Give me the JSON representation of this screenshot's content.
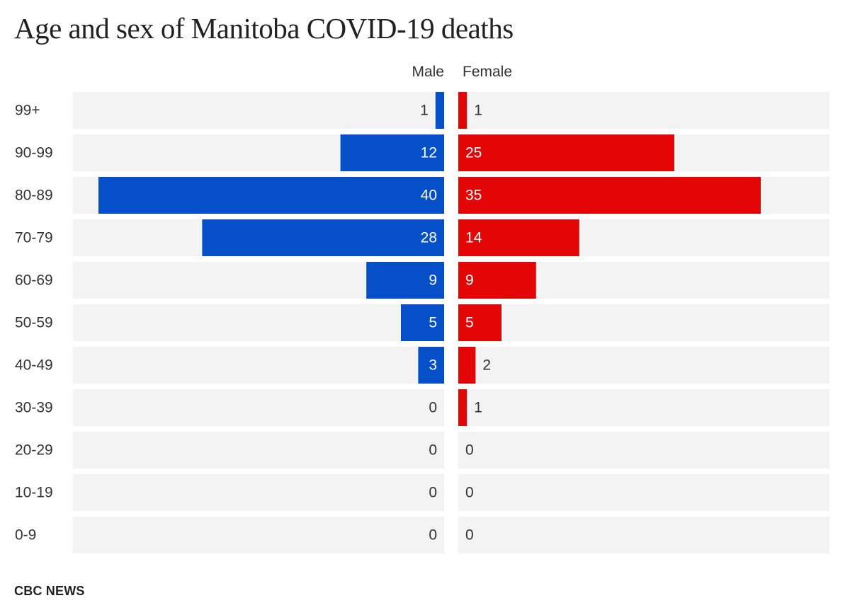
{
  "title": "Age and sex of Manitoba COVID-19 deaths",
  "source": "CBC NEWS",
  "chart_data": {
    "type": "bar",
    "layout": "population-pyramid",
    "title": "Age and sex of Manitoba COVID-19 deaths",
    "categories": [
      "99+",
      "90-99",
      "80-89",
      "70-79",
      "60-69",
      "50-59",
      "40-49",
      "30-39",
      "20-29",
      "10-19",
      "0-9"
    ],
    "series": [
      {
        "name": "Male",
        "values": [
          1,
          12,
          40,
          28,
          9,
          5,
          3,
          0,
          0,
          0,
          0
        ],
        "color": "#0550c8"
      },
      {
        "name": "Female",
        "values": [
          1,
          25,
          35,
          14,
          9,
          5,
          2,
          1,
          0,
          0,
          0
        ],
        "color": "#e40606"
      }
    ],
    "xlim": [
      0,
      43
    ],
    "grid": false,
    "legend": "top-center",
    "background_color": "#f3f3f3"
  }
}
